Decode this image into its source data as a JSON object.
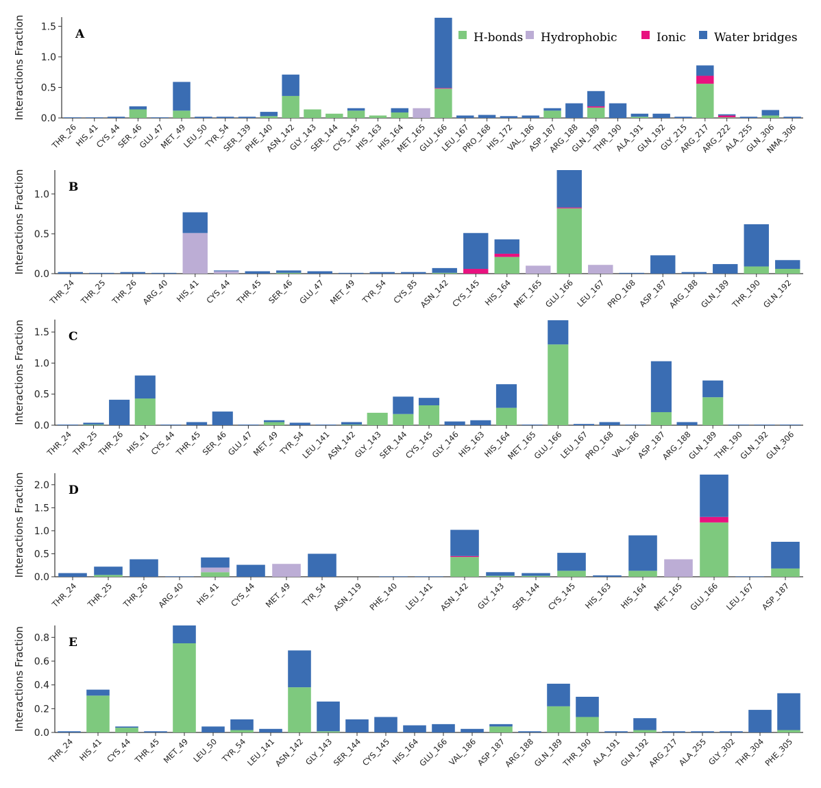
{
  "chart_data": {
    "type": "bar",
    "stacked": true,
    "legend": {
      "position": "top-right",
      "items": [
        {
          "key": "hbonds",
          "label": "H-bonds",
          "color": "#7ec97e"
        },
        {
          "key": "hydrophobic",
          "label": "Hydrophobic",
          "color": "#bcadd5"
        },
        {
          "key": "ionic",
          "label": "Ionic",
          "color": "#e8127f"
        },
        {
          "key": "water",
          "label": "Water bridges",
          "color": "#3a6db3"
        }
      ]
    },
    "panels": [
      {
        "title": "A",
        "ylabel": "Interactions Fraction",
        "ylim": [
          0,
          1.65
        ],
        "yticks": [
          "0.0",
          "0.5",
          "1.0",
          "1.5"
        ],
        "categories": [
          "THR_26",
          "HIS_41",
          "CYS_44",
          "SER_46",
          "GLU_47",
          "MET_49",
          "LEU_50",
          "TYR_54",
          "SER_139",
          "PHE_140",
          "ASN_142",
          "GLY_143",
          "SER_144",
          "CYS_145",
          "HIS_163",
          "HIS_164",
          "MET_165",
          "GLU_166",
          "LEU_167",
          "PRO_168",
          "HIS_172",
          "VAL_186",
          "ASP_187",
          "ARG_188",
          "GLN_189",
          "THR_190",
          "ALA_191",
          "GLN_192",
          "GLY_215",
          "ARG_217",
          "ARG_222",
          "ALA_255",
          "GLN_306",
          "NMA_306"
        ],
        "series": [
          {
            "name": "H-bonds",
            "values": [
              0,
              0,
              0,
              0.14,
              0,
              0.12,
              0,
              0,
              0,
              0.03,
              0.36,
              0.14,
              0.07,
              0.12,
              0.04,
              0.09,
              0,
              0.48,
              0,
              0,
              0,
              0,
              0.12,
              0,
              0.17,
              0,
              0.02,
              0,
              0,
              0.56,
              0.01,
              0,
              0.04,
              0
            ]
          },
          {
            "name": "Hydrophobic",
            "values": [
              0,
              0,
              0,
              0,
              0,
              0,
              0,
              0,
              0,
              0,
              0,
              0,
              0,
              0,
              0,
              0,
              0.16,
              0,
              0,
              0,
              0,
              0,
              0,
              0,
              0,
              0,
              0,
              0,
              0,
              0,
              0,
              0,
              0,
              0
            ]
          },
          {
            "name": "Ionic",
            "values": [
              0,
              0,
              0,
              0,
              0,
              0,
              0,
              0,
              0,
              0,
              0,
              0,
              0,
              0,
              0,
              0,
              0,
              0.01,
              0,
              0,
              0,
              0,
              0,
              0,
              0.02,
              0,
              0,
              0,
              0,
              0.13,
              0.03,
              0,
              0,
              0
            ]
          },
          {
            "name": "Water bridges",
            "values": [
              0.01,
              0.01,
              0.02,
              0.05,
              0.01,
              0.47,
              0.02,
              0.02,
              0.02,
              0.07,
              0.35,
              0,
              0,
              0.04,
              0,
              0.07,
              0,
              1.15,
              0.04,
              0.05,
              0.03,
              0.04,
              0.04,
              0.24,
              0.25,
              0.24,
              0.05,
              0.07,
              0.02,
              0.17,
              0.02,
              0.02,
              0.09,
              0.02
            ]
          }
        ]
      },
      {
        "title": "B",
        "ylabel": "Interactions Fraction",
        "ylim": [
          0,
          1.3
        ],
        "yticks": [
          "0.0",
          "0.5",
          "1.0"
        ],
        "categories": [
          "THR_24",
          "THR_25",
          "THR_26",
          "ARG_40",
          "HIS_41",
          "CYS_44",
          "THR_45",
          "SER_46",
          "GLU_47",
          "MET_49",
          "TYR_54",
          "CYS_85",
          "ASN_142",
          "CYS_145",
          "HIS_164",
          "MET_165",
          "GLU_166",
          "LEU_167",
          "PRO_168",
          "ASP_187",
          "ARG_188",
          "GLN_189",
          "THR_190",
          "GLN_192"
        ],
        "series": [
          {
            "name": "H-bonds",
            "values": [
              0,
              0,
              0,
              0,
              0,
              0,
              0,
              0.01,
              0,
              0,
              0,
              0,
              0.01,
              0,
              0.21,
              0,
              0.82,
              0,
              0,
              0,
              0,
              0,
              0.09,
              0.06
            ]
          },
          {
            "name": "Hydrophobic",
            "values": [
              0,
              0,
              0,
              0,
              0.51,
              0.03,
              0,
              0,
              0,
              0,
              0,
              0,
              0,
              0,
              0,
              0.1,
              0,
              0.11,
              0,
              0,
              0,
              0,
              0,
              0
            ]
          },
          {
            "name": "Ionic",
            "values": [
              0,
              0,
              0,
              0,
              0,
              0,
              0,
              0,
              0,
              0,
              0,
              0,
              0,
              0.06,
              0.04,
              0,
              0.01,
              0,
              0,
              0,
              0,
              0,
              0,
              0
            ]
          },
          {
            "name": "Water bridges",
            "values": [
              0.02,
              0.01,
              0.02,
              0.01,
              0.26,
              0.01,
              0.03,
              0.03,
              0.03,
              0.01,
              0.02,
              0.02,
              0.06,
              0.45,
              0.18,
              0,
              0.47,
              0,
              0.01,
              0.23,
              0.02,
              0.12,
              0.53,
              0.11
            ]
          }
        ]
      },
      {
        "title": "C",
        "ylabel": "Interactions Fraction",
        "ylim": [
          0,
          1.7
        ],
        "yticks": [
          "0.0",
          "0.5",
          "1.0",
          "1.5"
        ],
        "categories": [
          "THR_24",
          "THR_25",
          "THR_26",
          "HIS_41",
          "CYS_44",
          "THR_45",
          "SER_46",
          "GLU_47",
          "MET_49",
          "TYR_54",
          "LEU_141",
          "ASN_142",
          "GLY_143",
          "SER_144",
          "CYS_145",
          "GLY_146",
          "HIS_163",
          "HIS_164",
          "MET_165",
          "GLU_166",
          "LEU_167",
          "PRO_168",
          "VAL_186",
          "ASP_187",
          "ARG_188",
          "GLN_189",
          "THR_190",
          "GLN_192",
          "GLN_306"
        ],
        "series": [
          {
            "name": "H-bonds",
            "values": [
              0,
              0.01,
              0,
              0.43,
              0,
              0,
              0,
              0,
              0.05,
              0,
              0,
              0.01,
              0.2,
              0.18,
              0.32,
              0,
              0,
              0.28,
              0,
              1.3,
              0,
              0,
              0,
              0.21,
              0,
              0.45,
              0,
              0,
              0
            ]
          },
          {
            "name": "Hydrophobic",
            "values": [
              0,
              0,
              0,
              0,
              0,
              0,
              0,
              0,
              0,
              0,
              0,
              0,
              0,
              0,
              0,
              0,
              0,
              0,
              0,
              0,
              0,
              0,
              0,
              0,
              0,
              0,
              0,
              0,
              0
            ]
          },
          {
            "name": "Ionic",
            "values": [
              0,
              0,
              0,
              0,
              0,
              0,
              0,
              0,
              0,
              0,
              0,
              0,
              0,
              0,
              0,
              0,
              0,
              0,
              0,
              0,
              0,
              0,
              0,
              0,
              0,
              0,
              0,
              0,
              0
            ]
          },
          {
            "name": "Water bridges",
            "values": [
              0.01,
              0.03,
              0.41,
              0.37,
              0.01,
              0.05,
              0.22,
              0.01,
              0.03,
              0.04,
              0.01,
              0.04,
              0,
              0.28,
              0.12,
              0.06,
              0.08,
              0.38,
              0.01,
              0.39,
              0.02,
              0.05,
              0.01,
              0.82,
              0.05,
              0.27,
              0.01,
              0.01,
              0.01
            ]
          }
        ]
      },
      {
        "title": "D",
        "ylabel": "Interactions Fraction",
        "ylim": [
          0,
          2.25
        ],
        "yticks": [
          "0.0",
          "0.5",
          "1.0",
          "1.5",
          "2.0"
        ],
        "categories": [
          "THR_24",
          "THR_25",
          "THR_26",
          "ARG_40",
          "HIS_41",
          "CYS_44",
          "MET_49",
          "TYR_54",
          "ASN_119",
          "PHE_140",
          "LEU_141",
          "ASN_142",
          "GLY_143",
          "SER_144",
          "CYS_145",
          "HIS_163",
          "HIS_164",
          "MET_165",
          "GLU_166",
          "LEU_167",
          "ASP_187"
        ],
        "series": [
          {
            "name": "H-bonds",
            "values": [
              0,
              0.04,
              0,
              0,
              0.1,
              0,
              0,
              0,
              0,
              0,
              0,
              0.43,
              0.02,
              0.02,
              0.13,
              0,
              0.13,
              0,
              1.18,
              0,
              0.18
            ]
          },
          {
            "name": "Hydrophobic",
            "values": [
              0,
              0,
              0,
              0,
              0.1,
              0,
              0.28,
              0,
              0,
              0,
              0,
              0,
              0,
              0,
              0,
              0,
              0,
              0.38,
              0,
              0,
              0
            ]
          },
          {
            "name": "Ionic",
            "values": [
              0,
              0,
              0,
              0,
              0,
              0,
              0,
              0,
              0,
              0,
              0,
              0.02,
              0,
              0,
              0,
              0,
              0,
              0,
              0.12,
              0,
              0
            ]
          },
          {
            "name": "Water bridges",
            "values": [
              0.08,
              0.18,
              0.38,
              0.01,
              0.22,
              0.26,
              0,
              0.5,
              0,
              0.01,
              0.01,
              0.57,
              0.08,
              0.06,
              0.39,
              0.03,
              0.77,
              0,
              0.92,
              0.01,
              0.58
            ]
          }
        ]
      },
      {
        "title": "E",
        "ylabel": "Interactions Fraction",
        "ylim": [
          0,
          0.9
        ],
        "yticks": [
          "0.0",
          "0.2",
          "0.4",
          "0.6",
          "0.8"
        ],
        "categories": [
          "THR_24",
          "HIS_41",
          "CYS_44",
          "THR_45",
          "MET_49",
          "LEU_50",
          "TYR_54",
          "LEU_141",
          "ASN_142",
          "GLY_143",
          "SER_144",
          "CYS_145",
          "HIS_164",
          "GLU_166",
          "VAL_186",
          "ASP_187",
          "ARG_188",
          "GLN_189",
          "THR_190",
          "ALA_191",
          "GLN_192",
          "ARG_217",
          "ALA_255",
          "GLY_302",
          "THR_304",
          "PHE_305"
        ],
        "series": [
          {
            "name": "H-bonds",
            "values": [
              0,
              0.31,
              0.04,
              0,
              0.75,
              0,
              0.02,
              0,
              0.38,
              0.01,
              0,
              0,
              0,
              0,
              0,
              0.05,
              0,
              0.22,
              0.13,
              0,
              0.02,
              0,
              0,
              0,
              0,
              0.02
            ]
          },
          {
            "name": "Hydrophobic",
            "values": [
              0,
              0,
              0,
              0,
              0,
              0,
              0,
              0,
              0,
              0,
              0,
              0,
              0,
              0,
              0,
              0,
              0,
              0,
              0,
              0,
              0,
              0,
              0,
              0,
              0,
              0
            ]
          },
          {
            "name": "Ionic",
            "values": [
              0,
              0,
              0,
              0,
              0,
              0,
              0,
              0,
              0,
              0,
              0,
              0,
              0,
              0,
              0,
              0,
              0,
              0,
              0,
              0,
              0,
              0,
              0,
              0,
              0,
              0
            ]
          },
          {
            "name": "Water bridges",
            "values": [
              0.01,
              0.05,
              0.01,
              0.01,
              0.15,
              0.05,
              0.09,
              0.03,
              0.31,
              0.25,
              0.11,
              0.13,
              0.06,
              0.07,
              0.03,
              0.02,
              0.01,
              0.19,
              0.17,
              0.01,
              0.1,
              0.01,
              0.01,
              0.01,
              0.19,
              0.31
            ]
          }
        ]
      }
    ]
  }
}
